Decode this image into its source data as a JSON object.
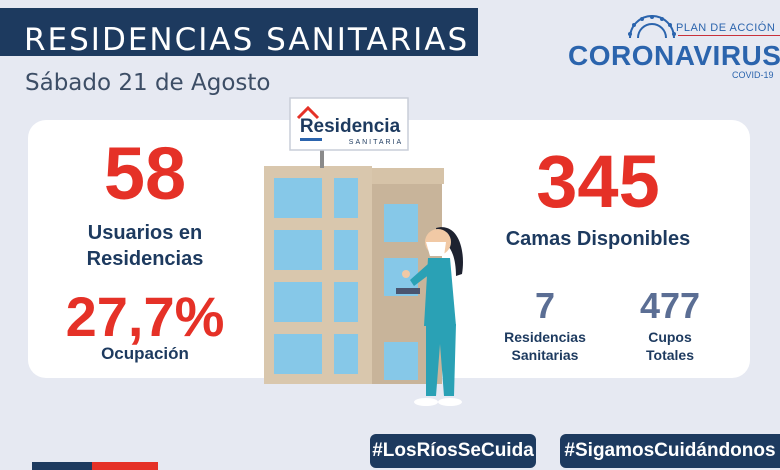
{
  "header": {
    "title": "RESIDENCIAS SANITARIAS",
    "date": "Sábado 21 de Agosto"
  },
  "logo": {
    "top_line": "PLAN DE ACCIÓN",
    "main": "CORONAVIRUS",
    "sub": "COVID-19"
  },
  "sign": {
    "name": "Residencia",
    "subtitle": "SANITARIA"
  },
  "stats": {
    "usuarios": {
      "value": "58",
      "label_line1": "Usuarios en",
      "label_line2": "Residencias"
    },
    "ocupacion": {
      "value": "27,7%",
      "label": "Ocupación"
    },
    "camas": {
      "value": "345",
      "label": "Camas Disponibles"
    },
    "residencias": {
      "value": "7",
      "label_line1": "Residencias",
      "label_line2": "Sanitarias"
    },
    "cupos": {
      "value": "477",
      "label_line1": "Cupos",
      "label_line2": "Totales"
    }
  },
  "hashtags": [
    "#LosRíosSeCuida",
    "#SigamosCuidándonos"
  ],
  "colors": {
    "navy": "#1d3a5f",
    "red": "#e53127",
    "slate": "#5b6e94",
    "brand_blue": "#2b64ad",
    "background": "#e6e9f2"
  }
}
